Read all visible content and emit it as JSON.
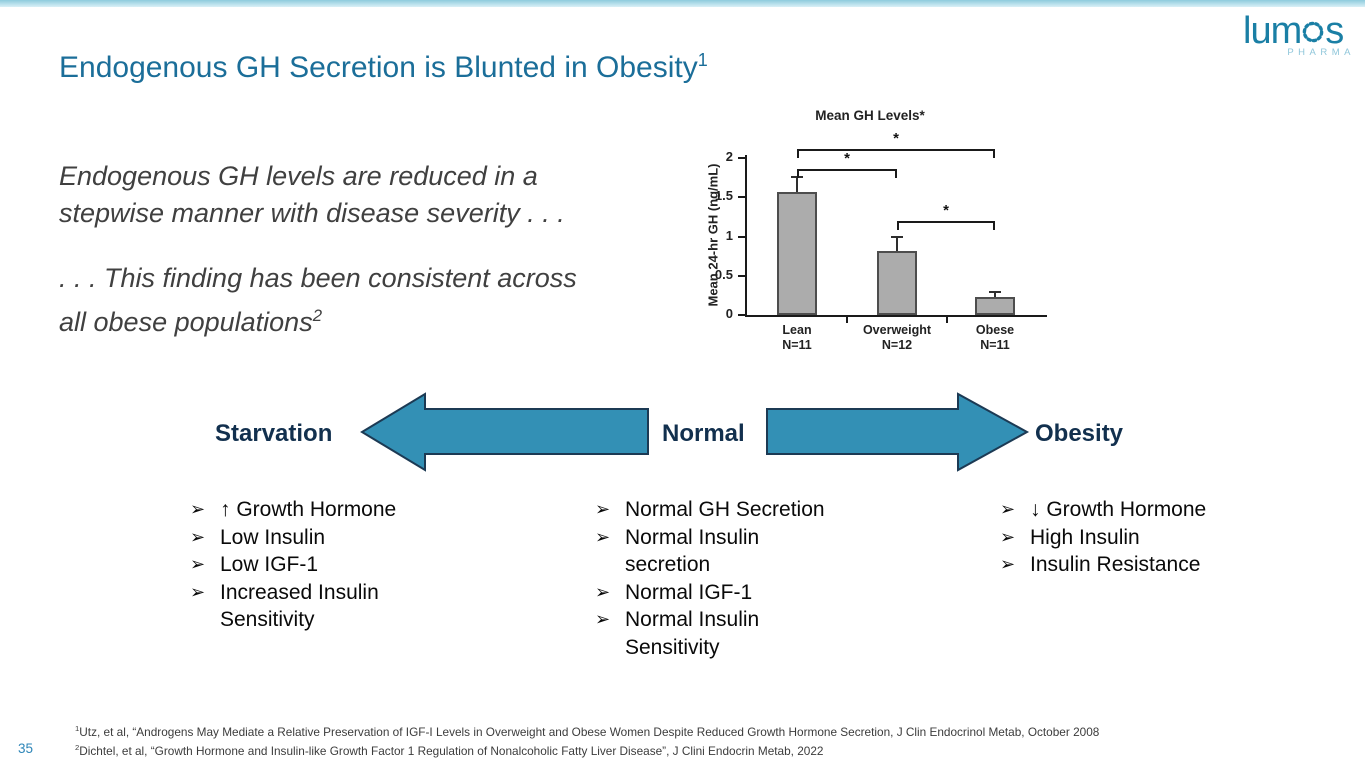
{
  "colors": {
    "accent_teal": "#1B6E99",
    "arrow_fill": "#3390B5",
    "arrow_border": "#1C3A54",
    "nav_label": "#12304E",
    "page_number": "#2E86B8",
    "logo_teal": "#1A7FA5",
    "logo_sub": "#8FC6DA"
  },
  "header": {
    "title": "Endogenous GH Secretion is Blunted in Obesity",
    "title_sup": "1"
  },
  "logo": {
    "name_prefix": "lum",
    "name_suffix": "s",
    "subtext": "PHARMA"
  },
  "quote": {
    "p1_line1": "Endogenous GH levels are reduced in a",
    "p1_line2": "stepwise manner with disease severity . . .",
    "p2_line1": ". . . This finding has been consistent across",
    "p2_line2": "all obese populations",
    "p2_sup": "2"
  },
  "chart_data": {
    "type": "bar",
    "title": "Mean GH Levels*",
    "ylabel": "Mean 24-hr GH (ng/mL)",
    "categories": [
      {
        "line1": "Lean",
        "line2": "N=11"
      },
      {
        "line1": "Overweight",
        "line2": "N=12"
      },
      {
        "line1": "Obese",
        "line2": "N=11"
      }
    ],
    "values": [
      1.57,
      0.81,
      0.23
    ],
    "error_tops": [
      1.75,
      0.98,
      0.28
    ],
    "ylim": [
      0,
      2
    ],
    "yticks": [
      "0",
      "0.5",
      "1",
      "1.5",
      "2"
    ],
    "significance_brackets": [
      {
        "from": 0,
        "to": 2,
        "label": "*"
      },
      {
        "from": 0,
        "to": 1,
        "label": "*"
      },
      {
        "from": 1,
        "to": 2,
        "label": "*"
      }
    ],
    "bar_color": "#ACACAC",
    "bar_border": "#4D4D4D",
    "legend": "none",
    "grid": false
  },
  "spectrum": {
    "bullet_glyph": "➢",
    "labels": {
      "left": "Starvation",
      "center": "Normal",
      "right": "Obesity"
    },
    "columns": [
      {
        "label": "Starvation",
        "items": [
          "↑ Growth Hormone",
          "Low Insulin",
          "Low IGF-1",
          "Increased Insulin Sensitivity"
        ]
      },
      {
        "label": "Normal",
        "items": [
          "Normal GH Secretion",
          "Normal Insulin secretion",
          "Normal IGF-1",
          "Normal Insulin Sensitivity"
        ]
      },
      {
        "label": "Obesity",
        "items": [
          "↓ Growth Hormone",
          "High Insulin",
          "Insulin Resistance"
        ]
      }
    ]
  },
  "footnotes": [
    {
      "sup": "1",
      "text": "Utz, et al, “Androgens May Mediate a Relative Preservation of IGF-I Levels in Overweight and Obese Women Despite Reduced Growth Hormone Secretion, J Clin Endocrinol Metab, October 2008"
    },
    {
      "sup": "2",
      "text": "Dichtel, et al, “Growth Hormone and Insulin-like Growth Factor 1 Regulation of Nonalcoholic Fatty Liver Disease”, J Clini Endocrin Metab, 2022"
    }
  ],
  "page_number": "35"
}
